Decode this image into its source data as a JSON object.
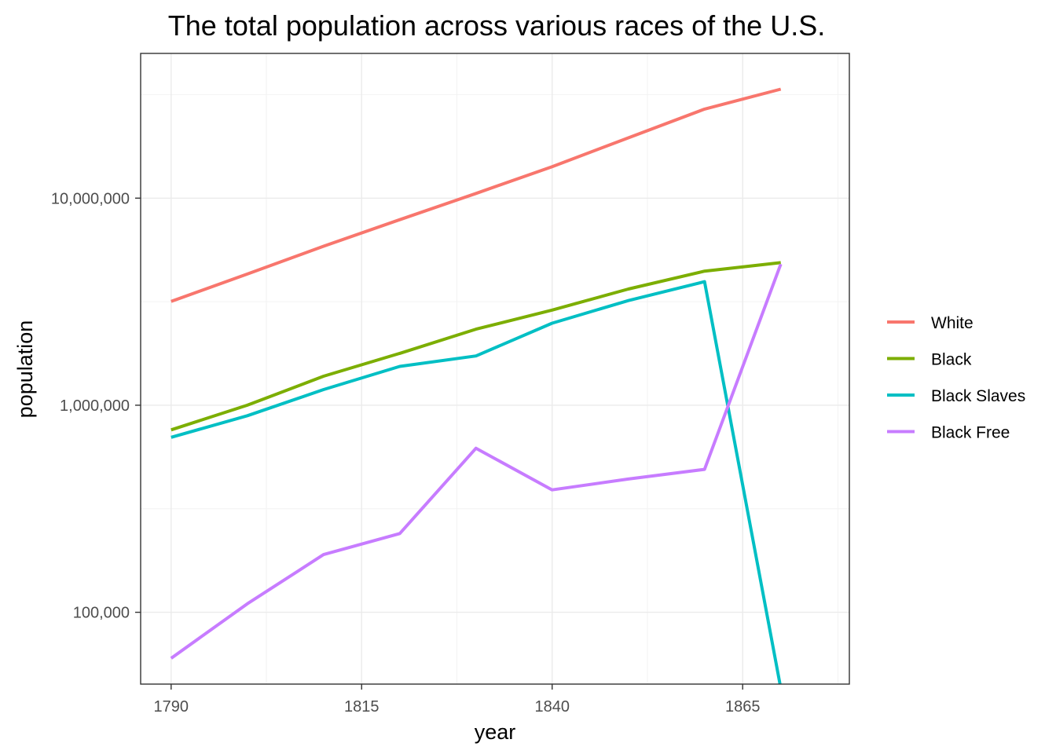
{
  "chart_data": {
    "type": "line",
    "title": "The total population across various races of the U.S.",
    "xlabel": "year",
    "ylabel": "population",
    "x": [
      1790,
      1800,
      1810,
      1820,
      1830,
      1840,
      1850,
      1860,
      1870
    ],
    "xlim": [
      1786,
      1879
    ],
    "x_ticks": [
      1790,
      1815,
      1840,
      1865
    ],
    "x_tick_labels": [
      "1790",
      "1815",
      "1840",
      "1865"
    ],
    "y_scale": "log",
    "ylim": [
      45000,
      50000000
    ],
    "y_ticks": [
      100000,
      1000000,
      10000000
    ],
    "y_tick_labels": [
      "100,000",
      "1,000,000",
      "10,000,000"
    ],
    "grid": true,
    "legend_position": "right",
    "series": [
      {
        "name": "White",
        "color": "#F8766D",
        "values": [
          3170000,
          4300000,
          5860000,
          7870000,
          10540000,
          14190000,
          19550000,
          26920000,
          33590000
        ]
      },
      {
        "name": "Black",
        "color": "#7CAE00",
        "values": [
          760000,
          1000000,
          1380000,
          1780000,
          2330000,
          2880000,
          3640000,
          4440000,
          4880000
        ]
      },
      {
        "name": "Black Slaves",
        "color": "#00BFC4",
        "values": [
          700000,
          890000,
          1190000,
          1540000,
          1730000,
          2490000,
          3200000,
          3950000,
          43000
        ]
      },
      {
        "name": "Black Free",
        "color": "#C77CFF",
        "values": [
          60000,
          110000,
          190000,
          240000,
          620000,
          390000,
          440000,
          490000,
          4800000
        ]
      }
    ]
  }
}
